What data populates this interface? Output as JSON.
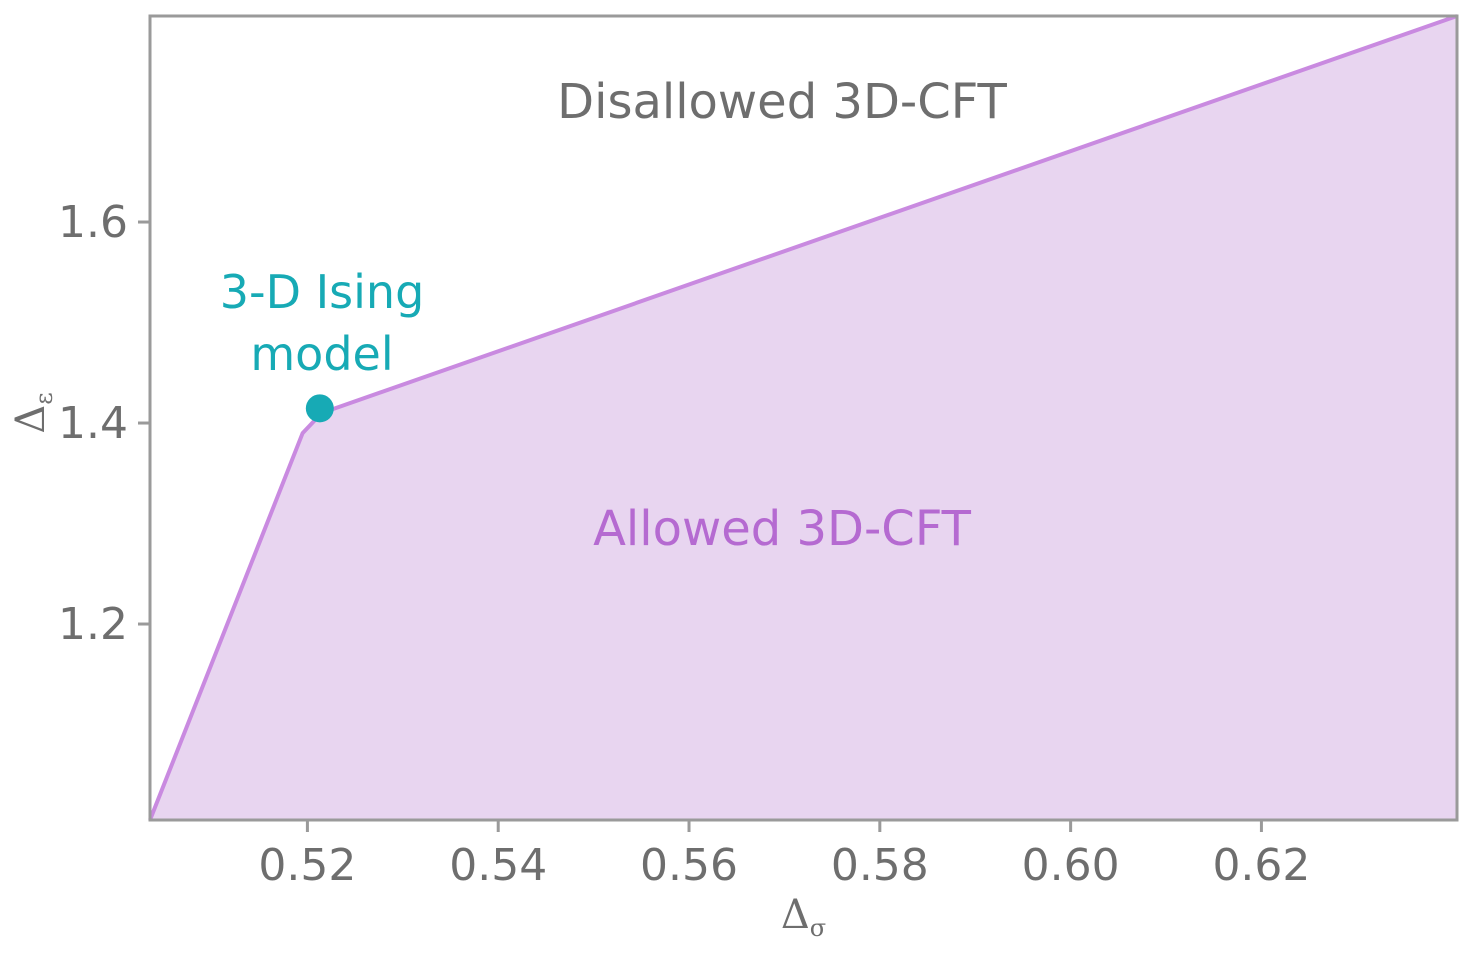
{
  "chart_data": {
    "type": "area",
    "title": "",
    "xlabel": "Δσ",
    "ylabel": "Δε",
    "xlim": [
      0.5035,
      0.6405
    ],
    "ylim": [
      1.005,
      1.805
    ],
    "x_ticks": [
      {
        "value": 0.52,
        "label": "0.52"
      },
      {
        "value": 0.54,
        "label": "0.54"
      },
      {
        "value": 0.56,
        "label": "0.56"
      },
      {
        "value": 0.58,
        "label": "0.58"
      },
      {
        "value": 0.6,
        "label": "0.60"
      },
      {
        "value": 0.62,
        "label": "0.62"
      }
    ],
    "y_ticks": [
      {
        "value": 1.2,
        "label": "1.2"
      },
      {
        "value": 1.4,
        "label": "1.4"
      },
      {
        "value": 1.6,
        "label": "1.6"
      }
    ],
    "grid": false,
    "series": [
      {
        "x": [
          0.5035,
          0.5195,
          0.5215,
          0.6405
        ],
        "y": [
          1.005,
          1.39,
          1.41,
          1.805
        ],
        "fill_color": "#e8d5f0",
        "line_color": "#c98ae0"
      }
    ],
    "point": {
      "x": 0.5213,
      "y": 1.4146,
      "color": "#17aab5"
    },
    "annotations": {
      "ising_line1": "3-D Ising",
      "ising_line2": "model",
      "disallowed": "Disallowed 3D-CFT",
      "allowed": "Allowed 3D-CFT"
    },
    "colors": {
      "ising": "#17aab5",
      "allowed": "#b56ad1",
      "disallowed": "#6e6e6e",
      "frame": "#9a9a9a"
    }
  }
}
